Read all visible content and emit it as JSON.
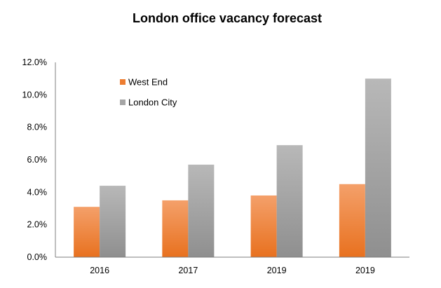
{
  "chart_data": {
    "type": "bar",
    "title": "London office vacancy forecast",
    "categories": [
      "2016",
      "2017",
      "2019",
      "2019"
    ],
    "series": [
      {
        "name": "West End",
        "values": [
          3.1,
          3.5,
          3.8,
          4.5
        ],
        "color": "#ed7d31"
      },
      {
        "name": "London City",
        "values": [
          4.4,
          5.7,
          6.9,
          11.0
        ],
        "color": "#a5a5a5"
      }
    ],
    "yticks": [
      "0.0%",
      "2.0%",
      "4.0%",
      "6.0%",
      "8.0%",
      "10.0%",
      "12.0%"
    ],
    "ylim": [
      0,
      12
    ],
    "grid": false,
    "legend": "top-left",
    "xlabel": "",
    "ylabel": ""
  }
}
